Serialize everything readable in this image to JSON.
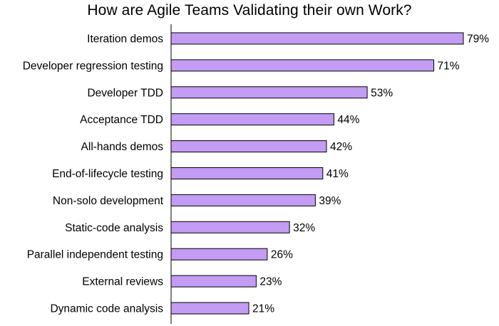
{
  "chart_data": {
    "type": "bar",
    "orientation": "horizontal",
    "title": "How are Agile Teams Validating their own Work?",
    "categories": [
      "Iteration demos",
      "Developer regression testing",
      "Developer TDD",
      "Acceptance TDD",
      "All-hands demos",
      "End-of-lifecycle testing",
      "Non-solo development",
      "Static-code analysis",
      "Parallel independent testing",
      "External reviews",
      "Dynamic code analysis"
    ],
    "values": [
      79,
      71,
      53,
      44,
      42,
      41,
      39,
      32,
      26,
      23,
      21
    ],
    "value_labels": [
      "79%",
      "71%",
      "53%",
      "44%",
      "42%",
      "41%",
      "39%",
      "32%",
      "26%",
      "23%",
      "21%"
    ],
    "xlim": [
      0,
      100
    ],
    "grid": false,
    "legend": "none",
    "bar_color": "#c39cf3",
    "bar_edge_color": "#000000",
    "axis_color": "#000000"
  }
}
